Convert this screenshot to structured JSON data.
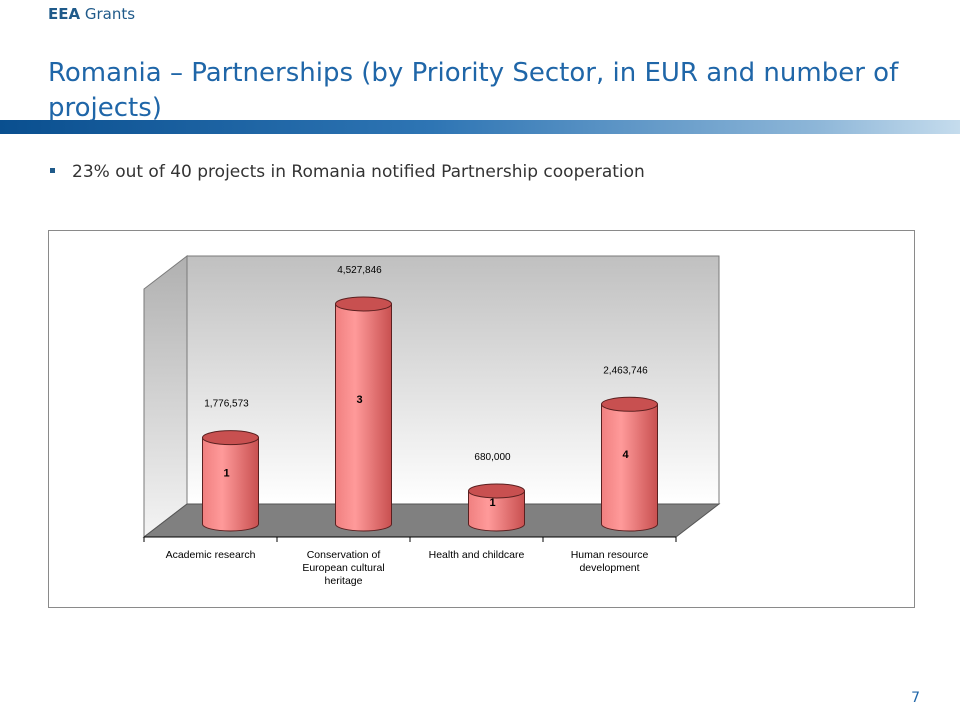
{
  "header": {
    "brand_bold": "EEA",
    "brand_rest": "Grants",
    "title": "Romania – Partnerships (by Priority Sector, in EUR and number of projects)"
  },
  "bullet": {
    "text": "23%  out of  40  projects in Romania notified Partnership cooperation"
  },
  "chart_data": {
    "type": "bar",
    "style": "3d-cylinder",
    "categories": [
      "Academic research",
      "Conservation of European cultural heritage",
      "Health and childcare",
      "Human resource development"
    ],
    "category_lines": [
      [
        "Academic research"
      ],
      [
        "Conservation of",
        "European cultural",
        "heritage"
      ],
      [
        "Health and childcare"
      ],
      [
        "Human resource",
        "development"
      ]
    ],
    "series": [
      {
        "values": [
          1776573,
          4527846,
          680000,
          2463746
        ],
        "value_labels": [
          "1,776,573",
          "4,527,846",
          "680,000",
          "2,463,746"
        ],
        "project_counts": [
          1,
          3,
          1,
          4
        ]
      }
    ],
    "ylim": [
      0,
      5000000
    ],
    "grid": false,
    "legend": "none",
    "colors": {
      "bar": "#f08080",
      "bar_dark": "#c85050",
      "floor": "#808080",
      "wall_top": "#c0c0c0",
      "wall_bottom": "#ffffff"
    }
  },
  "footer": {
    "page_number": "7"
  }
}
